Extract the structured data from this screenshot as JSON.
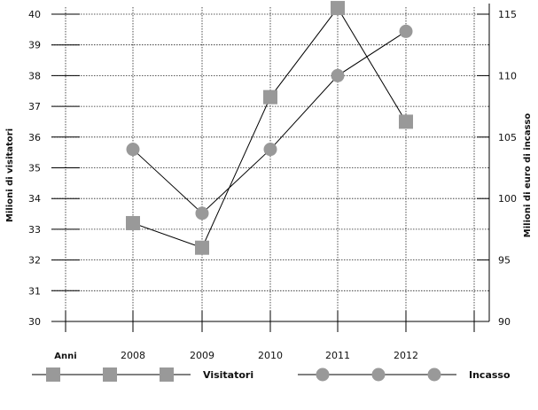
{
  "chart_data": {
    "type": "line",
    "xlabel": "Anni",
    "categories": [
      "2008",
      "2009",
      "2010",
      "2011",
      "2012"
    ],
    "ylabel_left": "Milioni di visitatori",
    "ylabel_right": "Milioni di euro di incasso",
    "ylim_left": [
      30,
      40
    ],
    "ylim_right": [
      90,
      115
    ],
    "yticks_left": [
      30,
      31,
      32,
      33,
      34,
      35,
      36,
      37,
      38,
      39,
      40
    ],
    "yticks_right": [
      90,
      95,
      100,
      105,
      110,
      115
    ],
    "grid": true,
    "series": [
      {
        "name": "Visitatori",
        "axis": "left",
        "marker": "square",
        "color": "#999999",
        "values": [
          33.2,
          32.4,
          37.3,
          40.2,
          36.5
        ]
      },
      {
        "name": "Incasso",
        "axis": "right",
        "marker": "circle",
        "color": "#999999",
        "values": [
          104,
          98.8,
          104,
          110,
          113.6
        ]
      }
    ]
  }
}
